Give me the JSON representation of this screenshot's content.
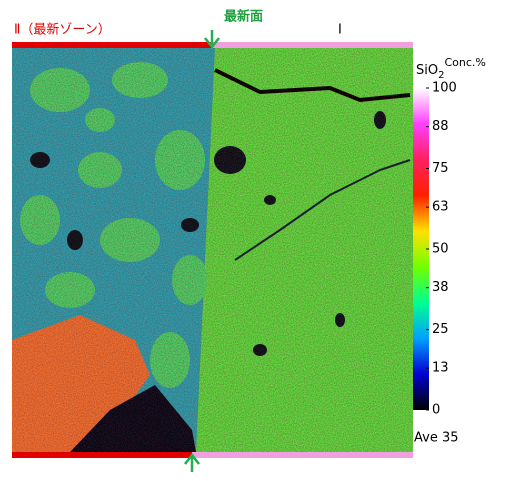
{
  "labels": {
    "zone_two": "Ⅱ（最新ゾーン）",
    "newest_surface": "最新面",
    "zone_one": "Ⅰ"
  },
  "colorbar": {
    "element": "SiO",
    "subscript": "2",
    "unit": "Conc.%",
    "range": [
      0,
      100
    ],
    "ticks": [
      0,
      13,
      25,
      38,
      50,
      63,
      75,
      88,
      100
    ],
    "colors": [
      "#000000",
      "#0000d0",
      "#00a0ff",
      "#00ff90",
      "#70ff00",
      "#ffe000",
      "#ff2000",
      "#ff2060",
      "#ff40ff",
      "#ffffff"
    ],
    "average": "Ave 35"
  }
}
